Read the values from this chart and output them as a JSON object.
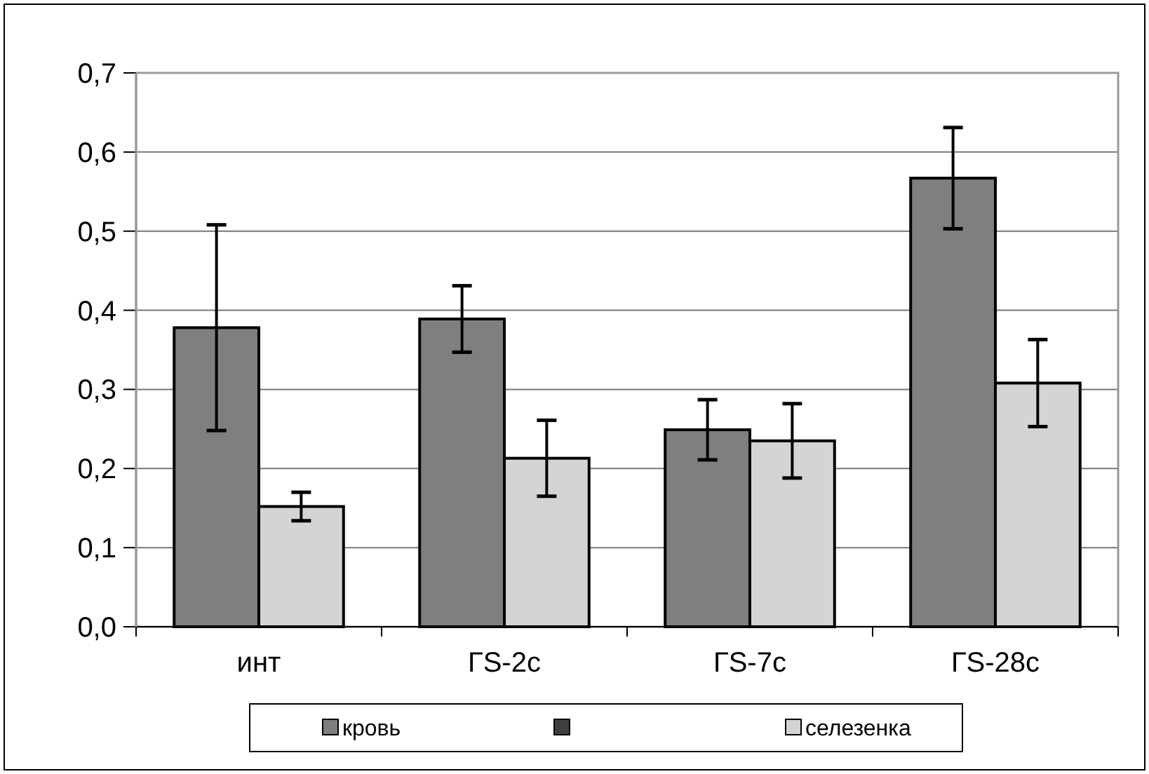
{
  "chart_data": {
    "type": "bar",
    "categories": [
      "инт",
      "ГS-2c",
      "ГS-7c",
      "ГS-28c"
    ],
    "series": [
      {
        "name": "кровь",
        "color": "#7f7f7f",
        "values": [
          0.378,
          0.389,
          0.249,
          0.567
        ],
        "errors": [
          0.13,
          0.042,
          0.038,
          0.064
        ]
      },
      {
        "name": "селезенка",
        "color": "#d4d4d4",
        "values": [
          0.152,
          0.213,
          0.235,
          0.308
        ],
        "errors": [
          0.018,
          0.048,
          0.047,
          0.055
        ]
      }
    ],
    "ylim": [
      0,
      0.7
    ],
    "yticks": [
      {
        "value": 0,
        "label": "0,0"
      },
      {
        "value": 0.1,
        "label": "0,1"
      },
      {
        "value": 0.2,
        "label": "0,2"
      },
      {
        "value": 0.3,
        "label": "0,3"
      },
      {
        "value": 0.4,
        "label": "0,4"
      },
      {
        "value": 0.5,
        "label": "0,5"
      },
      {
        "value": 0.6,
        "label": "0,6"
      },
      {
        "value": 0.7,
        "label": "0,7"
      }
    ],
    "grid": "y",
    "legend": "bottom"
  }
}
